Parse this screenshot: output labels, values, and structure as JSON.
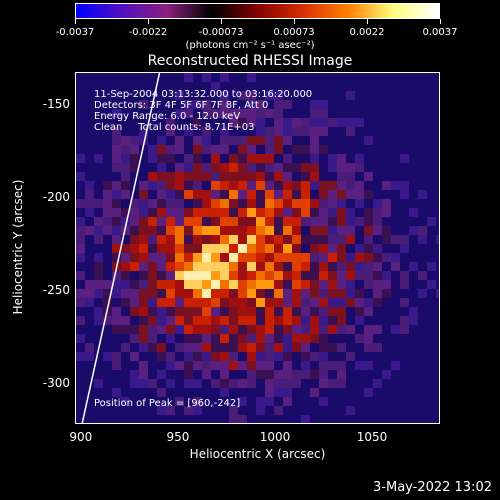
{
  "colorbar": {
    "tick_labels": [
      "-0.0037",
      "-0.0022",
      "-0.00073",
      "0.00073",
      "0.0022",
      "0.0037"
    ],
    "units": "(photons cm⁻² s⁻¹ asec⁻²)",
    "colors": [
      "#0000ff",
      "#5010c0",
      "#8a2080",
      "#000000",
      "#800000",
      "#d83000",
      "#ff8000",
      "#ffff80",
      "#ffffff"
    ]
  },
  "chart_data": {
    "type": "heatmap",
    "title": "Reconstructed RHESSI Image",
    "xlabel": "Heliocentric X (arcsec)",
    "ylabel": "Heliocentric Y (arcsec)",
    "xlim": [
      897,
      1085
    ],
    "ylim": [
      -322,
      -133
    ],
    "x_ticks": [
      "900",
      "950",
      "1000",
      "1050"
    ],
    "y_ticks": [
      "-150",
      "-200",
      "-250",
      "-300"
    ],
    "x_tick_values": [
      900,
      950,
      1000,
      1050
    ],
    "y_tick_values": [
      -150,
      -200,
      -250,
      -300
    ],
    "peak": [
      960,
      -242
    ],
    "limb_line": [
      [
        900,
        -322
      ],
      [
        940,
        -133
      ]
    ]
  },
  "annotations": {
    "time_range": "11-Sep-2004 03:13:32.000 to 03:16:20.000",
    "detectors": "Detectors: 3F 4F 5F 6F 7F 8F, Att 0",
    "energy": "Energy Range: 6.0 - 12.0 keV",
    "clean": "Clean     Total counts: 8.71E+03",
    "peak_text": "Position of Peak = [960,-242]"
  },
  "footer": {
    "timestamp": "3-May-2022 13:02"
  }
}
